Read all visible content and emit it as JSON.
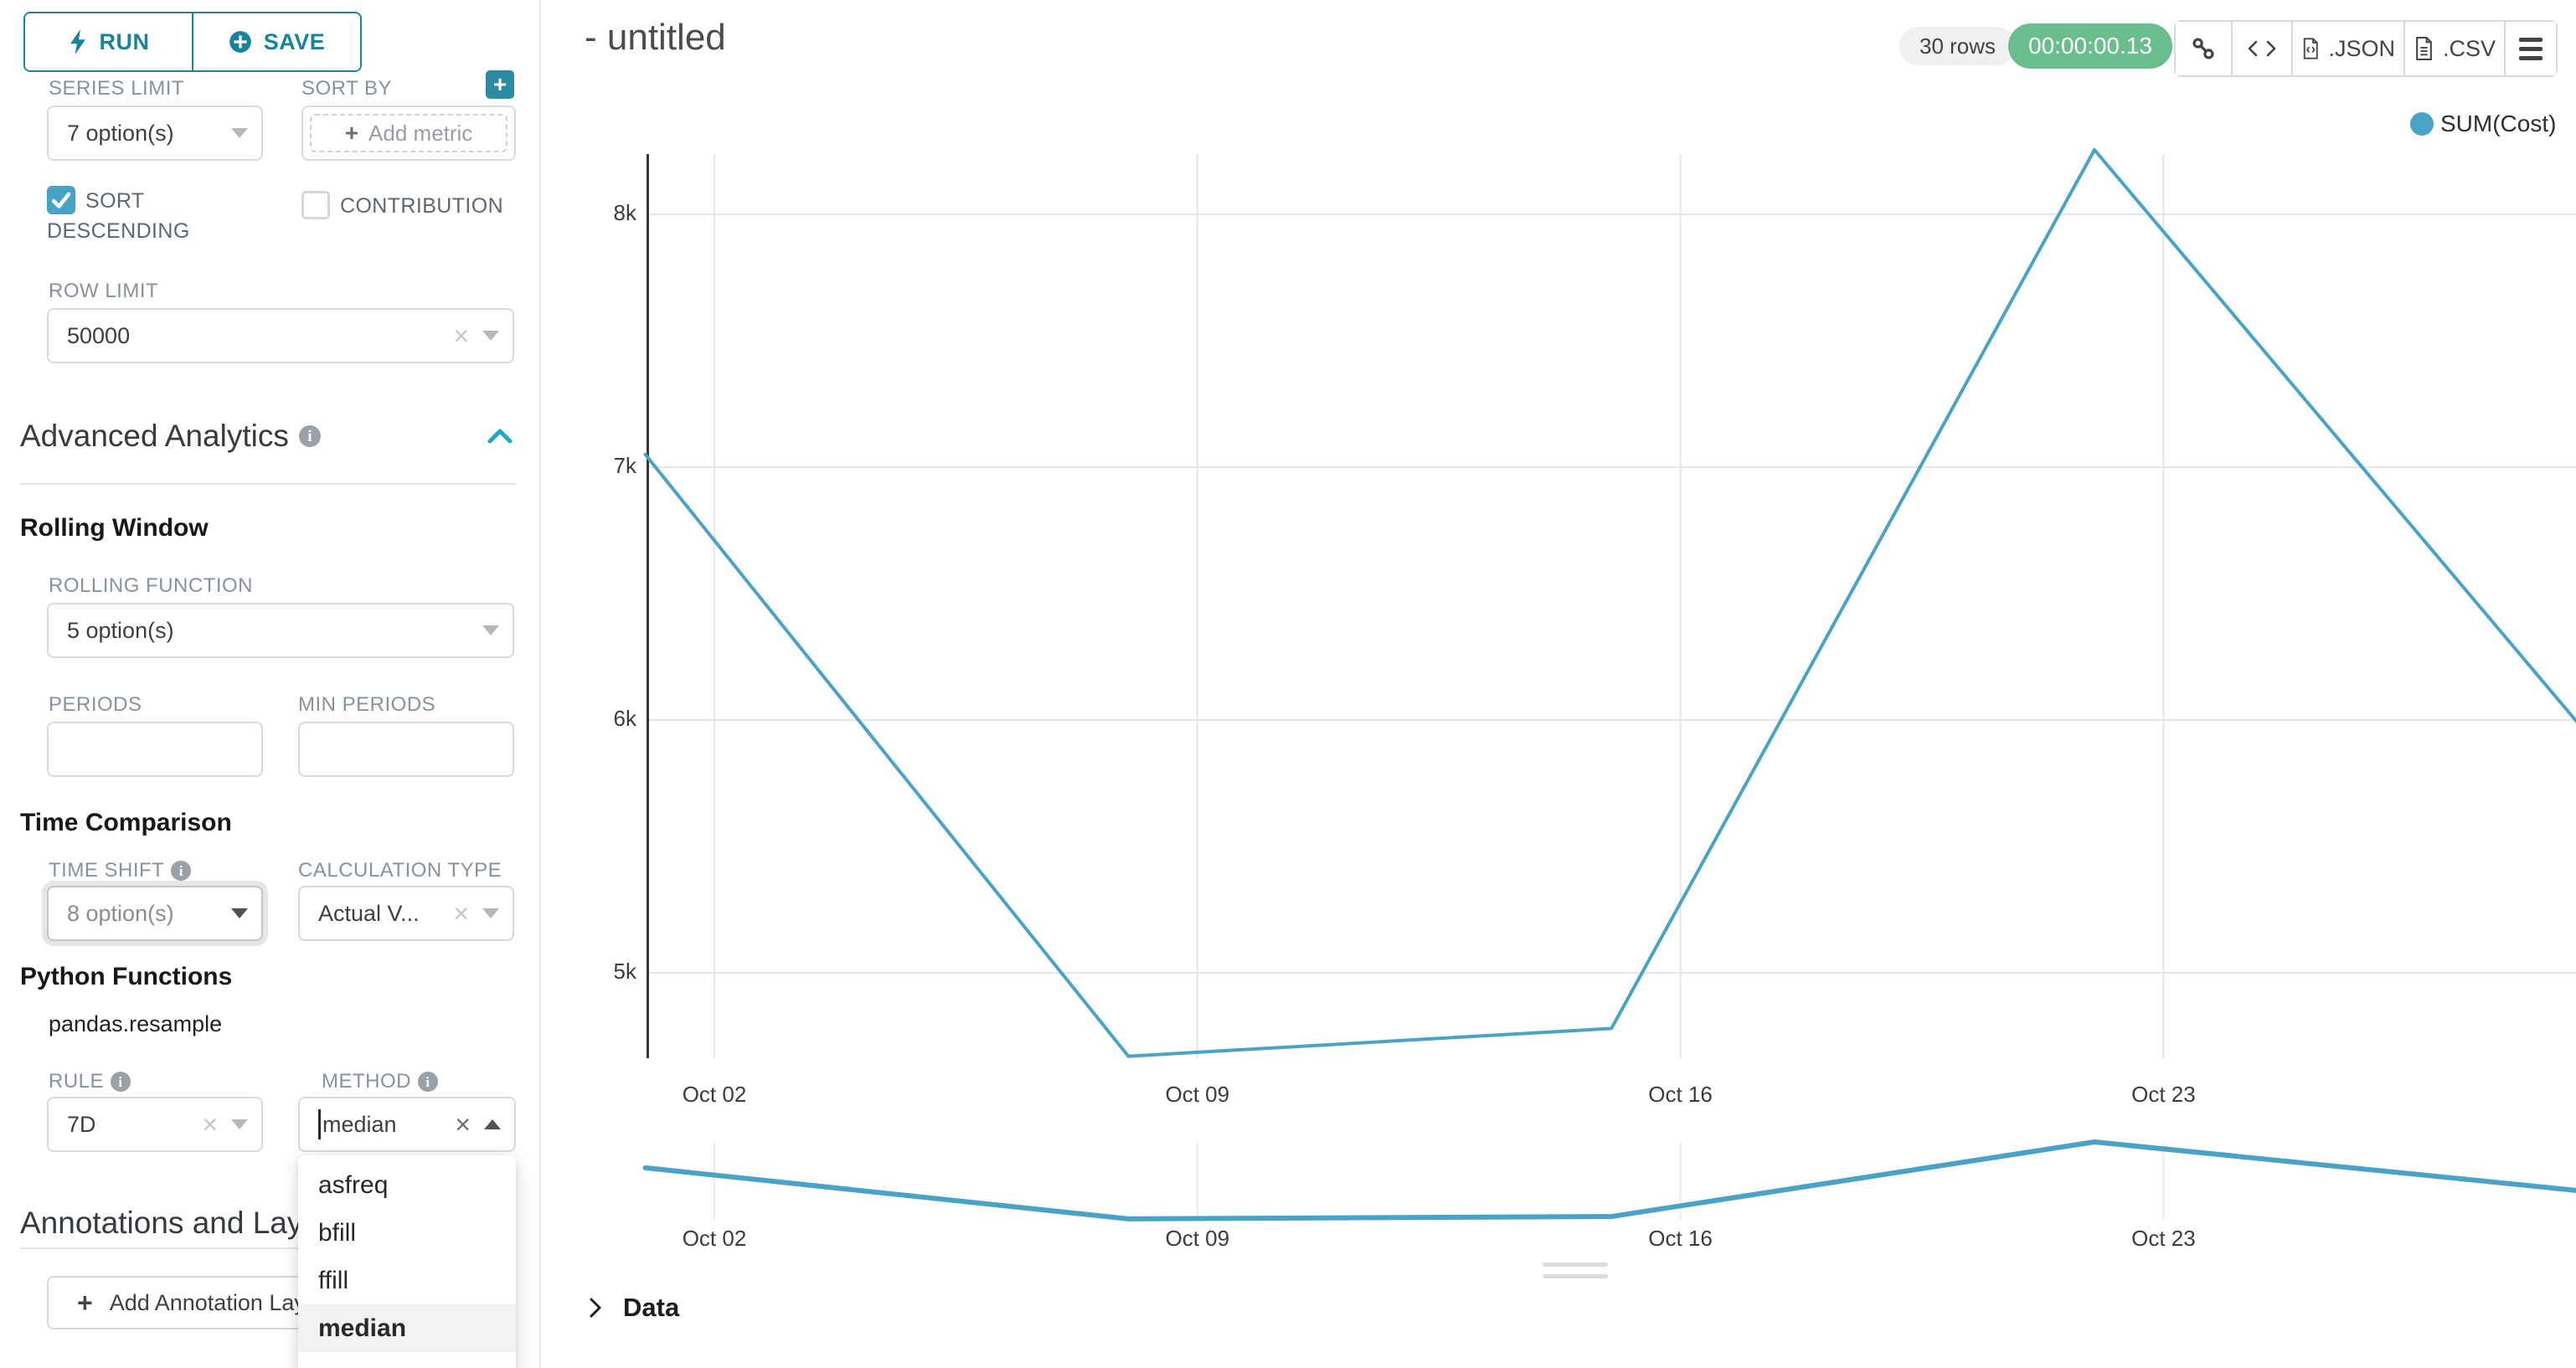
{
  "colors": {
    "accent": "#1fa8c9",
    "teal_dark": "#19839d",
    "line": "#4aa3c5",
    "green_badge": "#6abe8e",
    "grid": "#e6e6e6",
    "axis": "#37393c",
    "dropdown_highlight": "#f2f2f2"
  },
  "icons": {
    "run": "lightning-bolt",
    "save": "plus-circle",
    "sort_by_add": "plus",
    "select_caret": "triangle-down",
    "method_caret_open": "triangle-up",
    "clear": "x",
    "info": "info-circle",
    "collapse_section": "chevron-up",
    "permalink": "chain-link",
    "embed": "code-brackets",
    "export_json": "file-code",
    "export_csv": "file-text",
    "menu": "hamburger",
    "data_panel": "chevron-right",
    "resize": "grip-lines"
  },
  "sidebar": {
    "run_label": "RUN",
    "save_label": "SAVE",
    "series_limit": {
      "label": "SERIES LIMIT",
      "value": "7 option(s)"
    },
    "sort_by": {
      "label": "SORT BY",
      "add_metric_label": "Add metric"
    },
    "sort_descending_label": "SORT DESCENDING",
    "contribution_label": "CONTRIBUTION",
    "row_limit": {
      "label": "ROW LIMIT",
      "value": "50000"
    },
    "advanced_analytics_title": "Advanced Analytics",
    "rolling_window_title": "Rolling Window",
    "rolling_function": {
      "label": "ROLLING FUNCTION",
      "value": "5 option(s)"
    },
    "periods": {
      "label": "PERIODS",
      "value": ""
    },
    "min_periods": {
      "label": "MIN PERIODS",
      "value": ""
    },
    "time_comparison_title": "Time Comparison",
    "time_shift": {
      "label": "TIME SHIFT",
      "value": "8 option(s)"
    },
    "calculation_type": {
      "label": "CALCULATION TYPE",
      "value": "Actual V..."
    },
    "python_functions_title": "Python Functions",
    "pandas_resample_label": "pandas.resample",
    "rule": {
      "label": "RULE",
      "value": "7D"
    },
    "method": {
      "label": "METHOD",
      "value": "median",
      "options": [
        "asfreq",
        "bfill",
        "ffill",
        "median"
      ],
      "highlighted": "median"
    },
    "annotations_title": "Annotations and Layers",
    "add_annotation_label": "Add Annotation Layer"
  },
  "header": {
    "title": "- untitled",
    "rows_badge": "30 rows",
    "timer_badge": "00:00:00.13",
    "export_json_label": ".JSON",
    "export_csv_label": ".CSV"
  },
  "data_panel_label": "Data",
  "chart_data": {
    "type": "line",
    "title": "",
    "legend": [
      {
        "name": "SUM(Cost)",
        "color": "#4aa3c5",
        "position": "top-right"
      }
    ],
    "series": [
      {
        "name": "SUM(Cost)",
        "x": [
          "Oct 01",
          "Oct 08",
          "Oct 15",
          "Oct 22",
          "Oct 29"
        ],
        "day_offsets": [
          -1,
          6,
          13,
          20,
          27
        ],
        "values": [
          7050,
          4670,
          4780,
          8255,
          5990
        ],
        "note": "weekly 7D median resample of SUM(Cost); last point clipped at right chart edge"
      }
    ],
    "x_ticks": [
      {
        "label": "Oct 02",
        "day": 0
      },
      {
        "label": "Oct 09",
        "day": 7
      },
      {
        "label": "Oct 16",
        "day": 14
      },
      {
        "label": "Oct 23",
        "day": 21
      }
    ],
    "y_ticks": [
      {
        "label": "8k",
        "value": 8000
      },
      {
        "label": "7k",
        "value": 7000
      },
      {
        "label": "6k",
        "value": 6000
      },
      {
        "label": "5k",
        "value": 5000
      }
    ],
    "ylim": [
      4650,
      8270
    ],
    "grid": true,
    "has_zoom_preview": true
  }
}
